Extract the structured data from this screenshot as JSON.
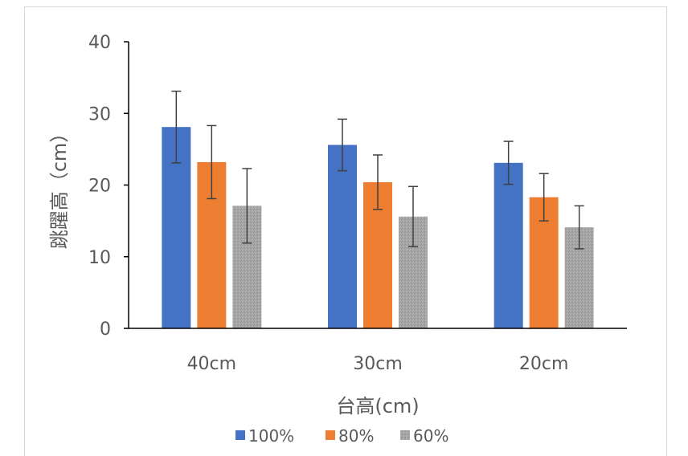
{
  "chart_data": {
    "type": "bar",
    "title": "",
    "xlabel": "台高(cm)",
    "ylabel": "跳躍高（cm）",
    "categories": [
      "40cm",
      "30cm",
      "20cm"
    ],
    "ylim": [
      0,
      40
    ],
    "yticks": [
      "0",
      "10",
      "20",
      "30",
      "40"
    ],
    "series": [
      {
        "name": "100%",
        "color": "#4472C4",
        "values": [
          28.1,
          25.6,
          23.1
        ],
        "errors": [
          5.0,
          3.6,
          3.0
        ]
      },
      {
        "name": "80%",
        "color": "#ED7D31",
        "values": [
          23.2,
          20.4,
          18.3
        ],
        "errors": [
          5.1,
          3.8,
          3.3
        ]
      },
      {
        "name": "60%",
        "color": "#A5A5A5",
        "values": [
          17.1,
          15.6,
          14.1
        ],
        "errors": [
          5.2,
          4.2,
          3.0
        ]
      }
    ],
    "legend": "bottom",
    "grid": false
  }
}
